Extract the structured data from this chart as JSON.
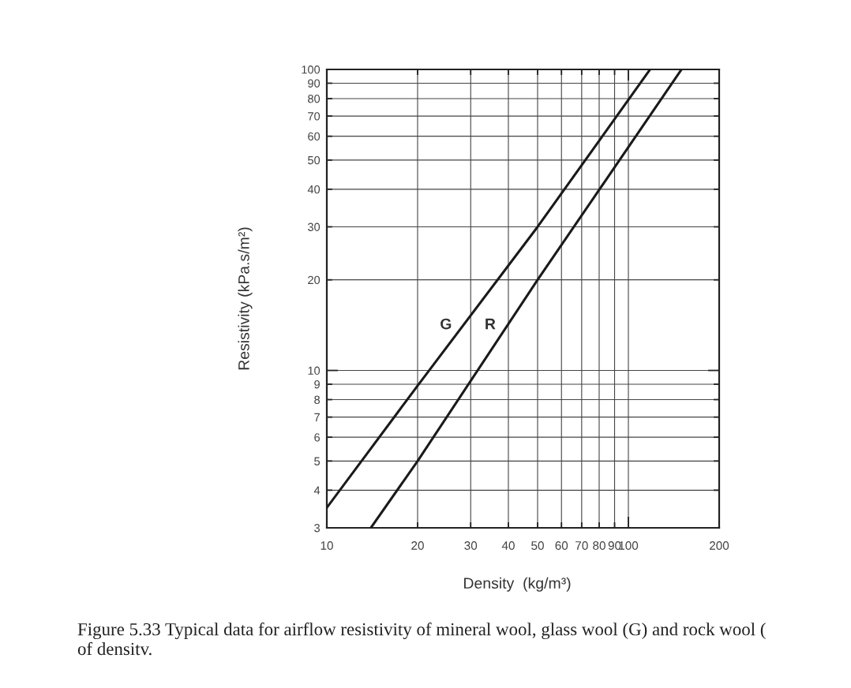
{
  "chart_data": {
    "type": "line",
    "xlabel": "Density  (kg/m³)",
    "ylabel": "Resistivity (kPa.s/m²)",
    "log": "xy",
    "xlim": [
      10,
      200
    ],
    "ylim": [
      3,
      100
    ],
    "xticks": [
      10,
      20,
      30,
      40,
      50,
      60,
      70,
      80,
      90,
      100,
      200
    ],
    "yticks": [
      3,
      4,
      5,
      6,
      7,
      8,
      9,
      10,
      20,
      30,
      40,
      50,
      60,
      70,
      80,
      90,
      100
    ],
    "grid": true,
    "legend": false,
    "marker": "none",
    "line_style": "solid",
    "series": [
      {
        "name": "G",
        "color": "#1a1a1a",
        "x": [
          10,
          20,
          50,
          118
        ],
        "values": [
          3.5,
          8.9,
          30,
          100
        ]
      },
      {
        "name": "R",
        "color": "#1a1a1a",
        "x": [
          14,
          20,
          50,
          150
        ],
        "values": [
          3,
          5,
          20,
          100
        ]
      }
    ],
    "annotations": [
      "Figure 5.33 Typical data for airflow resistivity of mineral wool, glass wool (G) and rock wool (\nof densitv."
    ]
  }
}
